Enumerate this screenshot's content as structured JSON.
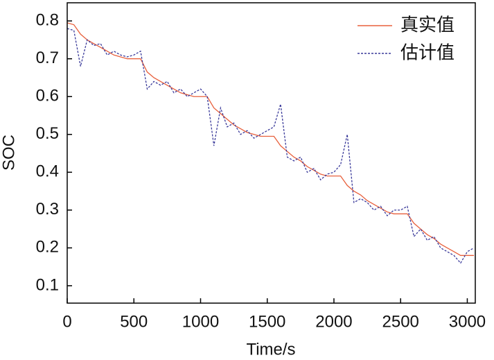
{
  "chart_data": {
    "type": "line",
    "xlabel": "Time/s",
    "ylabel": "SOC",
    "x": [
      0,
      50,
      100,
      150,
      200,
      250,
      300,
      350,
      400,
      450,
      500,
      550,
      600,
      650,
      700,
      750,
      800,
      850,
      900,
      950,
      1000,
      1050,
      1100,
      1150,
      1200,
      1250,
      1300,
      1350,
      1400,
      1450,
      1500,
      1550,
      1600,
      1650,
      1700,
      1750,
      1800,
      1850,
      1900,
      1950,
      2000,
      2050,
      2100,
      2150,
      2200,
      2250,
      2300,
      2350,
      2400,
      2450,
      2500,
      2550,
      2600,
      2650,
      2700,
      2750,
      2800,
      2850,
      2900,
      2950,
      3000,
      3050
    ],
    "series": [
      {
        "name": "真实值",
        "color": "#e8603c",
        "dash": false,
        "values": [
          0.795,
          0.79,
          0.765,
          0.75,
          0.74,
          0.73,
          0.72,
          0.71,
          0.705,
          0.7,
          0.7,
          0.7,
          0.665,
          0.65,
          0.64,
          0.63,
          0.62,
          0.61,
          0.605,
          0.6,
          0.6,
          0.6,
          0.57,
          0.555,
          0.54,
          0.525,
          0.515,
          0.505,
          0.5,
          0.495,
          0.495,
          0.495,
          0.47,
          0.455,
          0.44,
          0.43,
          0.415,
          0.405,
          0.395,
          0.39,
          0.39,
          0.39,
          0.365,
          0.35,
          0.34,
          0.325,
          0.315,
          0.305,
          0.295,
          0.29,
          0.29,
          0.29,
          0.265,
          0.25,
          0.235,
          0.225,
          0.21,
          0.2,
          0.19,
          0.18,
          0.18,
          0.18
        ]
      },
      {
        "name": "估计值",
        "color": "#3a3a9a",
        "dash": true,
        "values": [
          0.78,
          0.775,
          0.68,
          0.75,
          0.735,
          0.74,
          0.71,
          0.72,
          0.71,
          0.705,
          0.71,
          0.72,
          0.62,
          0.64,
          0.63,
          0.64,
          0.61,
          0.62,
          0.6,
          0.61,
          0.62,
          0.6,
          0.47,
          0.57,
          0.52,
          0.53,
          0.5,
          0.51,
          0.49,
          0.5,
          0.51,
          0.52,
          0.58,
          0.44,
          0.43,
          0.44,
          0.4,
          0.41,
          0.38,
          0.395,
          0.4,
          0.42,
          0.5,
          0.32,
          0.33,
          0.32,
          0.3,
          0.31,
          0.285,
          0.3,
          0.3,
          0.31,
          0.23,
          0.25,
          0.22,
          0.23,
          0.2,
          0.19,
          0.18,
          0.16,
          0.19,
          0.2
        ]
      }
    ],
    "xlim": [
      0,
      3060
    ],
    "xticks": [
      0,
      500,
      1000,
      1500,
      2000,
      2500,
      3000
    ],
    "ylim": [
      0.054,
      0.848
    ],
    "yticks": [
      0.1,
      0.2,
      0.3,
      0.4,
      0.5,
      0.6,
      0.7,
      0.8
    ],
    "grid": false,
    "legend": "upper right"
  }
}
